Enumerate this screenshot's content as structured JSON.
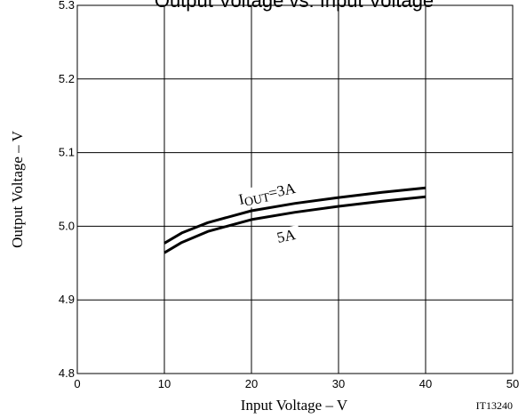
{
  "chart_data": {
    "type": "line",
    "title": "Output Voltage vs. Input Voltage",
    "xlabel": "Input Voltage  –  V",
    "ylabel": "Output Voltage  –  V",
    "xlim": [
      0,
      50
    ],
    "ylim": [
      4.8,
      5.3
    ],
    "x_ticks": [
      "0",
      "10",
      "20",
      "30",
      "40",
      "50"
    ],
    "y_ticks": [
      "4.8",
      "4.9",
      "5.0",
      "5.1",
      "5.2",
      "5.3"
    ],
    "grid": true,
    "figure_code": "IT13240",
    "series": [
      {
        "name": "IOUT=3A",
        "label_main": "I",
        "label_sub": "OUT",
        "label_rest": "=3A",
        "x": [
          10,
          12,
          15,
          20,
          25,
          30,
          35,
          40
        ],
        "values": [
          4.977,
          4.991,
          5.005,
          5.021,
          5.031,
          5.039,
          5.046,
          5.052
        ]
      },
      {
        "name": "5A",
        "label_main": "5A",
        "x": [
          10,
          12,
          15,
          20,
          25,
          30,
          35,
          40
        ],
        "values": [
          4.964,
          4.978,
          4.993,
          5.009,
          5.019,
          5.027,
          5.034,
          5.04
        ]
      }
    ]
  }
}
